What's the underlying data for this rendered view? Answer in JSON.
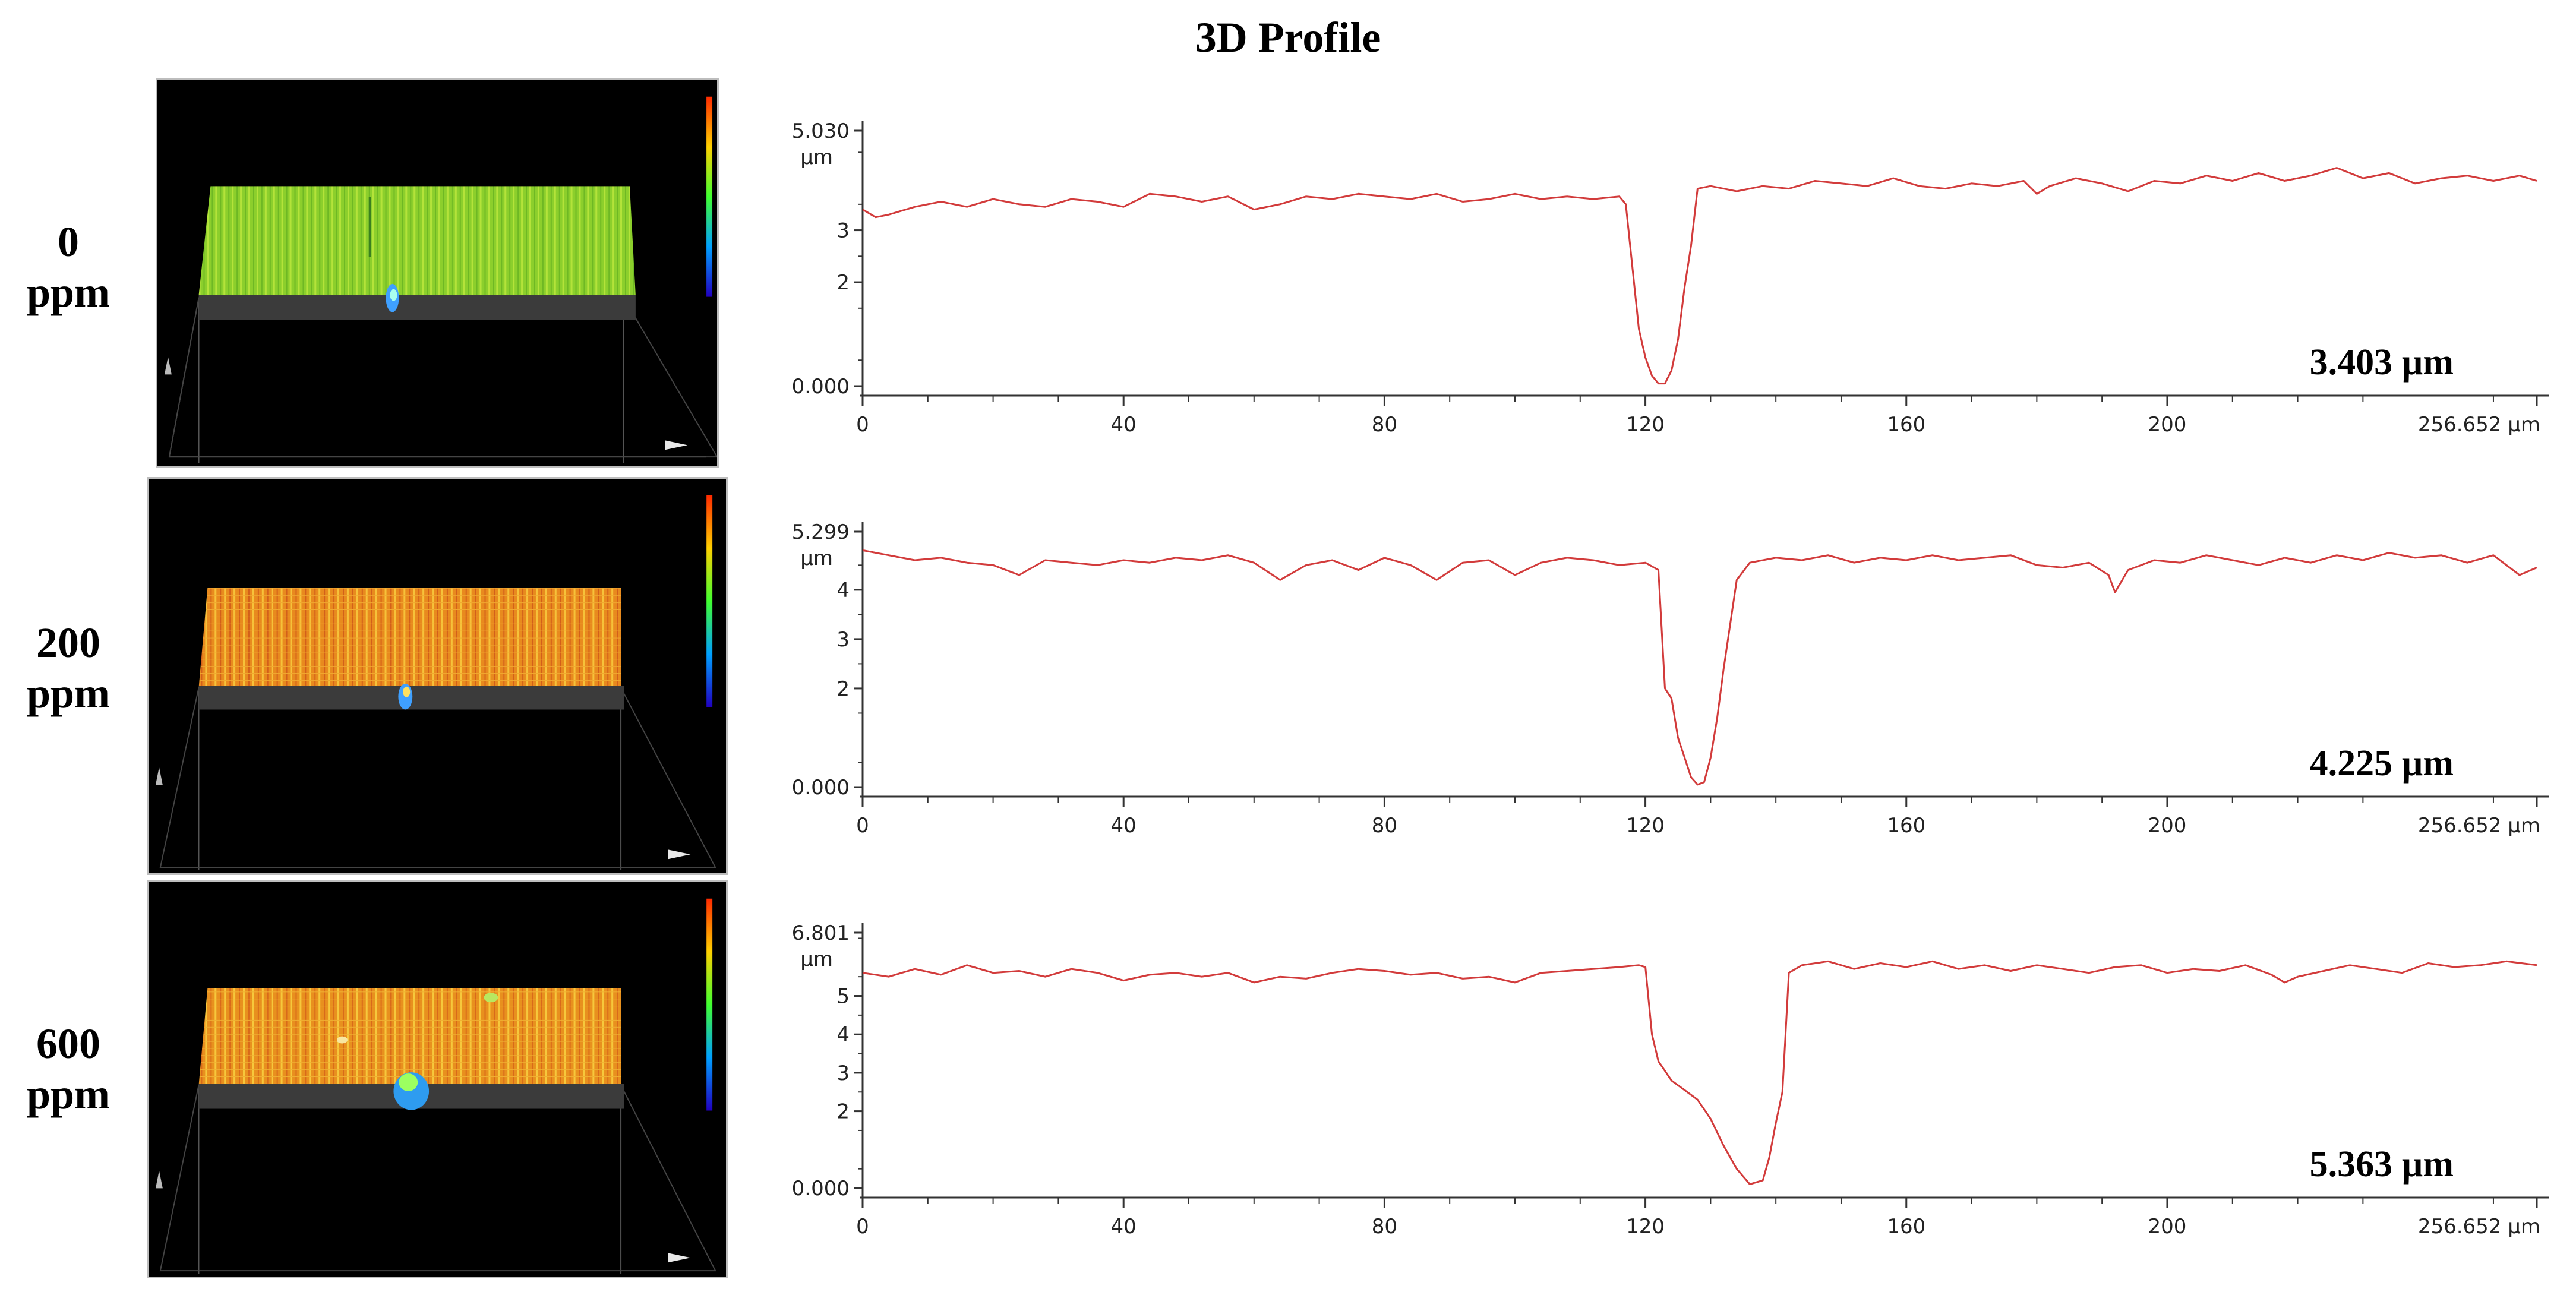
{
  "figure": {
    "title": "3D Profile"
  },
  "colors": {
    "profile_line": "#d23b3b",
    "axis": "#333333"
  },
  "rows": [
    {
      "label_lines": [
        "0",
        "ppm"
      ],
      "thumbnail": {
        "surface_color": "green",
        "pit": "small-narrow"
      }
    },
    {
      "label_lines": [
        "200",
        "ppm"
      ],
      "thumbnail": {
        "surface_color": "orange",
        "pit": "medium"
      }
    },
    {
      "label_lines": [
        "600",
        "ppm"
      ],
      "thumbnail": {
        "surface_color": "orange",
        "pit": "large-wide"
      }
    }
  ],
  "chart_data": [
    {
      "type": "line",
      "ymax_label": "5.030",
      "y_unit": "µm",
      "ylim": [
        0,
        5.03
      ],
      "y_ticks": [
        "0.000",
        "2",
        "3"
      ],
      "y_tick_values": [
        0,
        2,
        3
      ],
      "xlim": [
        0,
        256.652
      ],
      "x_ticks": [
        "0",
        "40",
        "80",
        "120",
        "160",
        "200",
        "256.652 µm"
      ],
      "x_tick_values": [
        0,
        40,
        80,
        120,
        160,
        200,
        256.652
      ],
      "depth_label": "3.403 µm",
      "series": [
        {
          "x": [
            0,
            2,
            4,
            8,
            12,
            16,
            20,
            24,
            28,
            32,
            36,
            40,
            44,
            48,
            52,
            56,
            60,
            64,
            68,
            72,
            76,
            80,
            84,
            88,
            92,
            96,
            100,
            104,
            108,
            112,
            116,
            117,
            118,
            119,
            120,
            121,
            122,
            123,
            124,
            125,
            126,
            127,
            128,
            130,
            134,
            138,
            142,
            146,
            150,
            154,
            158,
            162,
            166,
            170,
            174,
            178,
            180,
            182,
            186,
            190,
            194,
            198,
            202,
            206,
            210,
            214,
            218,
            222,
            226,
            230,
            234,
            238,
            242,
            246,
            250,
            254,
            256.652
          ],
          "y": [
            3.4,
            3.25,
            3.3,
            3.45,
            3.55,
            3.45,
            3.6,
            3.5,
            3.45,
            3.6,
            3.55,
            3.45,
            3.7,
            3.65,
            3.55,
            3.65,
            3.4,
            3.5,
            3.65,
            3.6,
            3.7,
            3.65,
            3.6,
            3.7,
            3.55,
            3.6,
            3.7,
            3.6,
            3.65,
            3.6,
            3.65,
            3.5,
            2.3,
            1.1,
            0.55,
            0.2,
            0.05,
            0.05,
            0.3,
            0.9,
            1.9,
            2.7,
            3.8,
            3.85,
            3.75,
            3.85,
            3.8,
            3.95,
            3.9,
            3.85,
            4.0,
            3.85,
            3.8,
            3.9,
            3.85,
            3.95,
            3.7,
            3.85,
            4.0,
            3.9,
            3.75,
            3.95,
            3.9,
            4.05,
            3.95,
            4.1,
            3.95,
            4.05,
            4.2,
            4.0,
            4.1,
            3.9,
            4.0,
            4.05,
            3.95,
            4.05,
            3.95
          ]
        }
      ]
    },
    {
      "type": "line",
      "ymax_label": "5.299",
      "y_unit": "µm",
      "ylim": [
        0,
        5.299
      ],
      "y_ticks": [
        "0.000",
        "2",
        "3",
        "4"
      ],
      "y_tick_values": [
        0,
        2,
        3,
        4
      ],
      "xlim": [
        0,
        256.652
      ],
      "x_ticks": [
        "0",
        "40",
        "80",
        "120",
        "160",
        "200",
        "256.652 µm"
      ],
      "x_tick_values": [
        0,
        40,
        80,
        120,
        160,
        200,
        256.652
      ],
      "depth_label": "4.225 µm",
      "series": [
        {
          "x": [
            0,
            4,
            8,
            12,
            16,
            20,
            24,
            28,
            32,
            36,
            40,
            44,
            48,
            52,
            56,
            60,
            64,
            68,
            72,
            76,
            80,
            84,
            88,
            92,
            96,
            100,
            104,
            108,
            112,
            116,
            120,
            122,
            123,
            124,
            125,
            126,
            127,
            128,
            129,
            130,
            131,
            132,
            133,
            134,
            136,
            140,
            144,
            148,
            152,
            156,
            160,
            164,
            168,
            172,
            176,
            180,
            184,
            188,
            191,
            192,
            194,
            198,
            202,
            206,
            210,
            214,
            218,
            222,
            226,
            230,
            234,
            238,
            242,
            246,
            250,
            254,
            256.652
          ],
          "y": [
            4.8,
            4.7,
            4.6,
            4.65,
            4.55,
            4.5,
            4.3,
            4.6,
            4.55,
            4.5,
            4.6,
            4.55,
            4.65,
            4.6,
            4.7,
            4.55,
            4.2,
            4.5,
            4.6,
            4.4,
            4.65,
            4.5,
            4.2,
            4.55,
            4.6,
            4.3,
            4.55,
            4.65,
            4.6,
            4.5,
            4.55,
            4.4,
            2.0,
            1.8,
            1.0,
            0.6,
            0.2,
            0.05,
            0.1,
            0.6,
            1.4,
            2.4,
            3.3,
            4.2,
            4.55,
            4.65,
            4.6,
            4.7,
            4.55,
            4.65,
            4.6,
            4.7,
            4.6,
            4.65,
            4.7,
            4.5,
            4.45,
            4.55,
            4.3,
            3.95,
            4.4,
            4.6,
            4.55,
            4.7,
            4.6,
            4.5,
            4.65,
            4.55,
            4.7,
            4.6,
            4.75,
            4.65,
            4.7,
            4.55,
            4.7,
            4.3,
            4.45
          ]
        }
      ]
    },
    {
      "type": "line",
      "ymax_label": "6.801",
      "y_unit": "µm",
      "ylim": [
        0,
        6.801
      ],
      "y_ticks": [
        "0.000",
        "2",
        "3",
        "4",
        "5"
      ],
      "y_tick_values": [
        0,
        2,
        3,
        4,
        5
      ],
      "xlim": [
        0,
        256.652
      ],
      "x_ticks": [
        "0",
        "40",
        "80",
        "120",
        "160",
        "200",
        "256.652 µm"
      ],
      "x_tick_values": [
        0,
        40,
        80,
        120,
        160,
        200,
        256.652
      ],
      "depth_label": "5.363 µm",
      "series": [
        {
          "x": [
            0,
            4,
            8,
            12,
            16,
            20,
            24,
            28,
            32,
            36,
            40,
            44,
            48,
            52,
            56,
            60,
            64,
            68,
            72,
            76,
            80,
            84,
            88,
            92,
            96,
            100,
            104,
            108,
            112,
            116,
            119,
            120,
            121,
            122,
            124,
            126,
            128,
            130,
            132,
            134,
            136,
            138,
            139,
            140,
            141,
            142,
            144,
            148,
            152,
            156,
            160,
            164,
            168,
            172,
            176,
            180,
            184,
            188,
            192,
            196,
            200,
            204,
            208,
            212,
            216,
            218,
            220,
            224,
            228,
            232,
            236,
            240,
            244,
            248,
            252,
            256.652
          ],
          "y": [
            5.6,
            5.5,
            5.7,
            5.55,
            5.8,
            5.6,
            5.65,
            5.5,
            5.7,
            5.6,
            5.4,
            5.55,
            5.6,
            5.5,
            5.6,
            5.35,
            5.5,
            5.45,
            5.6,
            5.7,
            5.65,
            5.55,
            5.6,
            5.45,
            5.5,
            5.35,
            5.6,
            5.65,
            5.7,
            5.75,
            5.8,
            5.75,
            4.0,
            3.3,
            2.8,
            2.55,
            2.3,
            1.8,
            1.1,
            0.5,
            0.1,
            0.2,
            0.8,
            1.7,
            2.5,
            5.6,
            5.8,
            5.9,
            5.7,
            5.85,
            5.75,
            5.9,
            5.7,
            5.8,
            5.65,
            5.8,
            5.7,
            5.6,
            5.75,
            5.8,
            5.6,
            5.7,
            5.65,
            5.8,
            5.55,
            5.35,
            5.5,
            5.65,
            5.8,
            5.7,
            5.6,
            5.85,
            5.75,
            5.8,
            5.9,
            5.8
          ]
        }
      ]
    }
  ]
}
